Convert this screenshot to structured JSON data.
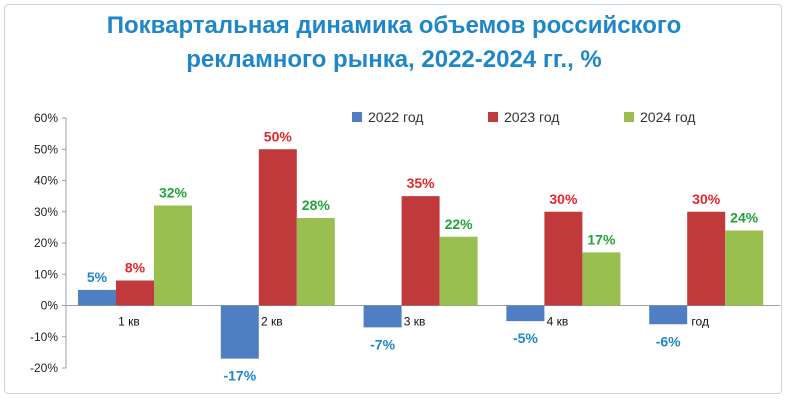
{
  "title_line1": "Поквартальная динамика объемов российского",
  "title_line2": "рекламного рынка, 2022-2024 гг., %",
  "chart_data": {
    "type": "bar",
    "title": "Поквартальная динамика объемов российского рекламного рынка, 2022-2024 гг., %",
    "categories": [
      "1 кв",
      "2 кв",
      "3 кв",
      "4 кв",
      "год"
    ],
    "series": [
      {
        "name": "2022 год",
        "color": "#4f7ec2",
        "values": [
          5,
          -17,
          -7,
          -5,
          -6
        ],
        "labels": [
          "5%",
          "-17%",
          "-7%",
          "-5%",
          "-6%"
        ]
      },
      {
        "name": "2023 год",
        "color": "#c0393b",
        "values": [
          8,
          50,
          35,
          30,
          30
        ],
        "labels": [
          "8%",
          "50%",
          "35%",
          "30%",
          "30%"
        ]
      },
      {
        "name": "2024 год",
        "color": "#98bf4f",
        "values": [
          32,
          28,
          22,
          17,
          24
        ],
        "labels": [
          "32%",
          "28%",
          "22%",
          "17%",
          "24%"
        ]
      }
    ],
    "label_colors": [
      "#1f86c7",
      "#e2262b",
      "#22a33a"
    ],
    "ylim": [
      -20,
      60
    ],
    "yticks": [
      -20,
      -10,
      0,
      10,
      20,
      30,
      40,
      50,
      60
    ],
    "ytick_labels": [
      "-20%",
      "-10%",
      "0%",
      "10%",
      "20%",
      "30%",
      "40%",
      "50%",
      "60%"
    ],
    "legend_position": "top-right",
    "grid": false
  }
}
